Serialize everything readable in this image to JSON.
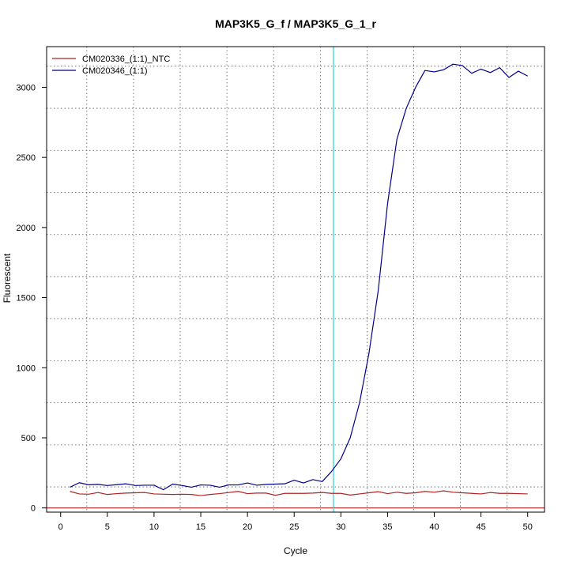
{
  "chart_data": {
    "type": "line",
    "title": "MAP3K5_G_f / MAP3K5_G_1_r",
    "xlabel": "Cycle",
    "ylabel": "Fluorescent",
    "xlim": [
      -1.5,
      51.8
    ],
    "ylim": [
      -30,
      3290
    ],
    "x_ticks": [
      0,
      5,
      10,
      15,
      20,
      25,
      30,
      35,
      40,
      45,
      50
    ],
    "y_ticks": [
      0,
      500,
      1000,
      1500,
      2000,
      2500,
      3000
    ],
    "x_gridlines": [
      2.8,
      7.8,
      12.8,
      17.8,
      22.8,
      27.8,
      32.8,
      37.8,
      42.8,
      47.8
    ],
    "y_gridlines": [
      150,
      450,
      750,
      1050,
      1350,
      1650,
      1950,
      2250,
      2550,
      2850,
      3150
    ],
    "grid": true,
    "legend_position": "top-left",
    "threshold": {
      "x": 29.2,
      "color": "#00e5ee"
    },
    "baseline": {
      "y": 0,
      "color": "#b22222"
    },
    "series": [
      {
        "name": "CM020336_(1:1)_NTC",
        "color": "#b22222",
        "x": [
          1,
          2,
          3,
          4,
          5,
          6,
          7,
          8,
          9,
          10,
          11,
          12,
          13,
          14,
          15,
          16,
          17,
          18,
          19,
          20,
          21,
          22,
          23,
          24,
          25,
          26,
          27,
          28,
          29,
          30,
          31,
          32,
          33,
          34,
          35,
          36,
          37,
          38,
          39,
          40,
          41,
          42,
          43,
          44,
          45,
          46,
          47,
          48,
          49,
          50
        ],
        "values": [
          118,
          100,
          98,
          110,
          96,
          102,
          106,
          108,
          110,
          100,
          98,
          96,
          98,
          96,
          88,
          96,
          102,
          110,
          118,
          102,
          106,
          106,
          90,
          104,
          104,
          104,
          106,
          110,
          104,
          104,
          92,
          100,
          108,
          116,
          102,
          112,
          104,
          108,
          118,
          112,
          122,
          112,
          108,
          104,
          100,
          110,
          104,
          104,
          102,
          100
        ]
      },
      {
        "name": "CM020346_(1:1)",
        "color": "#00008b",
        "x": [
          1,
          2,
          3,
          4,
          5,
          6,
          7,
          8,
          9,
          10,
          11,
          12,
          13,
          14,
          15,
          16,
          17,
          18,
          19,
          20,
          21,
          22,
          23,
          24,
          25,
          26,
          27,
          28,
          29,
          30,
          31,
          32,
          33,
          34,
          35,
          36,
          37,
          38,
          39,
          40,
          41,
          42,
          43,
          44,
          45,
          46,
          47,
          48,
          49,
          50
        ],
        "values": [
          148,
          180,
          165,
          168,
          160,
          166,
          172,
          160,
          162,
          162,
          130,
          170,
          160,
          148,
          164,
          162,
          148,
          164,
          164,
          178,
          162,
          168,
          170,
          172,
          198,
          178,
          202,
          188,
          260,
          350,
          500,
          750,
          1100,
          1550,
          2170,
          2630,
          2850,
          3000,
          3120,
          3110,
          3125,
          3165,
          3155,
          3100,
          3130,
          3105,
          3140,
          3070,
          3115,
          3080
        ]
      }
    ]
  }
}
